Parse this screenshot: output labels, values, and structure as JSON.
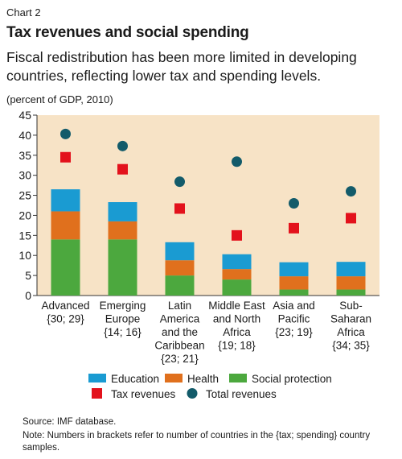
{
  "chart_label": "Chart 2",
  "title": "Tax revenues and social spending",
  "subtitle": "Fiscal redistribution has been more limited in developing countries, reflecting lower tax and spending levels.",
  "unit": "(percent of GDP, 2010)",
  "source": "Source: IMF database.",
  "note": "Note: Numbers in brackets refer to number of countries in the {tax; spending} country samples.",
  "colors": {
    "plot_bg": "#f7e3c6",
    "education": "#1a9bd2",
    "health": "#e0701d",
    "social_protection": "#4ca83e",
    "tax_revenues": "#e3121c",
    "total_revenues": "#135b6a"
  },
  "chart_data": {
    "type": "bar",
    "stacked": true,
    "categories": [
      [
        "Advanced",
        "{30; 29}"
      ],
      [
        "Emerging",
        "Europe",
        "{14; 16}"
      ],
      [
        "Latin",
        "America",
        "and the",
        "Caribbean",
        "{23; 21}"
      ],
      [
        "Middle East",
        "and North",
        "Africa",
        "{19; 18}"
      ],
      [
        "Asia and",
        "Pacific",
        "{23; 19}"
      ],
      [
        "Sub-",
        "Saharan",
        "Africa",
        "{34; 35}"
      ]
    ],
    "series": [
      {
        "name": "Social protection",
        "kind": "bar",
        "color_key": "social_protection",
        "values": [
          14,
          14,
          5,
          4,
          1.5,
          1.5
        ]
      },
      {
        "name": "Health",
        "kind": "bar",
        "color_key": "health",
        "values": [
          7,
          4.5,
          3.8,
          2.6,
          3.3,
          3.3
        ]
      },
      {
        "name": "Education",
        "kind": "bar",
        "color_key": "education",
        "values": [
          5.5,
          4.8,
          4.5,
          3.7,
          3.5,
          3.6
        ]
      },
      {
        "name": "Tax revenues",
        "kind": "square",
        "color_key": "tax_revenues",
        "values": [
          34.5,
          31.5,
          21.7,
          15,
          16.8,
          19.3
        ]
      },
      {
        "name": "Total revenues",
        "kind": "circle",
        "color_key": "total_revenues",
        "values": [
          40.3,
          37.3,
          28.4,
          33.4,
          23,
          26
        ]
      }
    ],
    "ylim": [
      0,
      45
    ],
    "yticks": [
      0,
      5,
      10,
      15,
      20,
      25,
      30,
      35,
      40,
      45
    ],
    "grid": false,
    "legend": {
      "placement": "bottom",
      "rows": [
        [
          "Education",
          "Health",
          "Social protection"
        ],
        [
          "Tax revenues",
          "Total revenues"
        ]
      ]
    }
  }
}
